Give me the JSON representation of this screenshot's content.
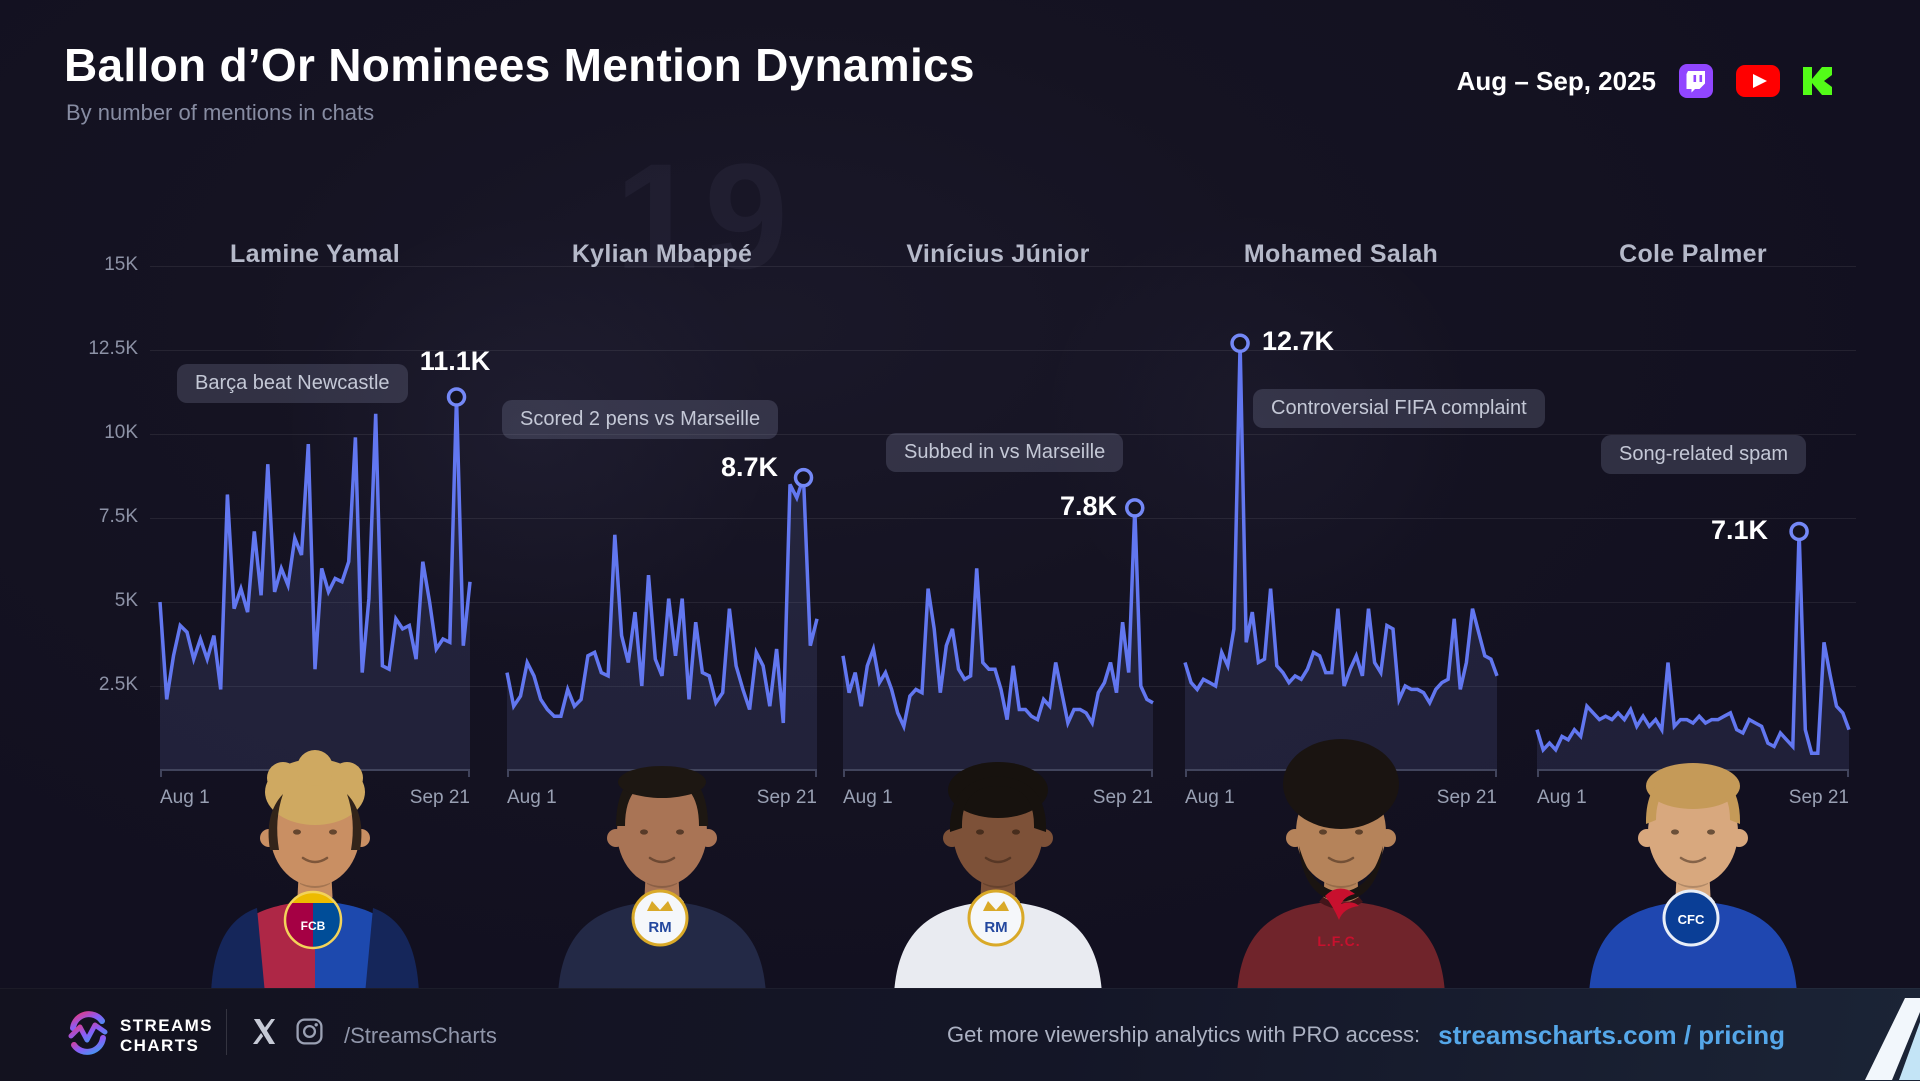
{
  "header": {
    "title": "Ballon d’Or Nominees Mention Dynamics",
    "subtitle": "By number of mentions in chats",
    "date_range": "Aug – Sep, 2025",
    "platform_icons": [
      "twitch",
      "youtube",
      "kick"
    ]
  },
  "chart_data": {
    "type": "line",
    "title": "Ballon d’Or Nominees Mention Dynamics",
    "metric": "Number of mentions in chats (thousands)",
    "x_start_label": "Aug 1",
    "x_end_label": "Sep 21",
    "ylim_k": [
      0,
      15
    ],
    "yticks": [
      "15K",
      "12.5K",
      "10K",
      "7.5K",
      "5K",
      "2.5K"
    ],
    "grid": true,
    "legend_position": "none",
    "series": [
      {
        "name": "Lamine Yamal",
        "annotation": "Barça beat Newcastle",
        "peak_label": "11.1K",
        "peak_value_k": 11.1,
        "values_k": [
          5.0,
          2.1,
          3.4,
          4.3,
          4.1,
          3.3,
          3.9,
          3.3,
          4.0,
          2.4,
          8.2,
          4.8,
          5.4,
          4.7,
          7.1,
          5.2,
          9.1,
          5.3,
          6.0,
          5.5,
          6.9,
          6.4,
          9.7,
          3.0,
          6.0,
          5.3,
          5.7,
          5.6,
          6.2,
          9.9,
          2.9,
          5.1,
          10.6,
          3.1,
          3.0,
          4.5,
          4.2,
          4.3,
          3.3,
          6.2,
          5.0,
          3.6,
          3.9,
          3.8,
          11.1,
          3.7,
          5.6
        ]
      },
      {
        "name": "Kylian Mbappé",
        "annotation": "Scored 2 pens vs Marseille",
        "peak_label": "8.7K",
        "peak_value_k": 8.7,
        "values_k": [
          2.9,
          1.9,
          2.2,
          3.2,
          2.8,
          2.1,
          1.8,
          1.6,
          1.6,
          2.4,
          1.9,
          2.1,
          3.4,
          3.5,
          2.9,
          2.8,
          7.0,
          4.0,
          3.2,
          4.7,
          2.5,
          5.8,
          3.3,
          2.8,
          5.1,
          3.4,
          5.1,
          2.1,
          4.4,
          2.9,
          2.8,
          2.0,
          2.3,
          4.8,
          3.1,
          2.4,
          1.8,
          3.5,
          3.1,
          1.9,
          3.6,
          1.4,
          8.5,
          8.1,
          8.7,
          3.7,
          4.5
        ]
      },
      {
        "name": "Vinícius Júnior",
        "annotation": "Subbed in vs Marseille",
        "peak_label": "7.8K",
        "peak_value_k": 7.8,
        "values_k": [
          3.4,
          2.3,
          2.9,
          1.9,
          3.1,
          3.6,
          2.6,
          2.9,
          2.4,
          1.7,
          1.3,
          2.2,
          2.4,
          2.3,
          5.4,
          4.2,
          2.3,
          3.7,
          4.2,
          3.0,
          2.7,
          2.8,
          6.0,
          3.2,
          3.0,
          3.0,
          2.4,
          1.5,
          3.1,
          1.8,
          1.8,
          1.6,
          1.5,
          2.1,
          1.9,
          3.2,
          2.3,
          1.4,
          1.8,
          1.8,
          1.7,
          1.4,
          2.3,
          2.6,
          3.2,
          2.3,
          4.4,
          2.9,
          7.8,
          2.5,
          2.1,
          2.0
        ]
      },
      {
        "name": "Mohamed Salah",
        "annotation": "Controversial FIFA complaint",
        "peak_label": "12.7K",
        "peak_value_k": 12.7,
        "values_k": [
          3.2,
          2.6,
          2.4,
          2.7,
          2.6,
          2.5,
          3.5,
          3.1,
          4.2,
          12.7,
          3.8,
          4.7,
          3.2,
          3.3,
          5.4,
          3.1,
          2.9,
          2.6,
          2.8,
          2.7,
          3.0,
          3.5,
          3.4,
          2.9,
          2.9,
          4.8,
          2.5,
          3.0,
          3.4,
          2.8,
          4.8,
          3.2,
          2.9,
          4.3,
          4.2,
          2.1,
          2.5,
          2.4,
          2.4,
          2.3,
          2.0,
          2.4,
          2.6,
          2.7,
          4.5,
          2.4,
          3.2,
          4.8,
          4.1,
          3.4,
          3.3,
          2.8
        ]
      },
      {
        "name": "Cole Palmer",
        "annotation": "Song-related spam",
        "peak_label": "7.1K",
        "peak_value_k": 7.1,
        "values_k": [
          1.2,
          0.6,
          0.8,
          0.6,
          1.0,
          0.9,
          1.2,
          1.0,
          1.9,
          1.7,
          1.5,
          1.6,
          1.5,
          1.7,
          1.5,
          1.8,
          1.3,
          1.6,
          1.3,
          1.5,
          1.2,
          3.2,
          1.3,
          1.5,
          1.5,
          1.4,
          1.6,
          1.4,
          1.5,
          1.5,
          1.6,
          1.7,
          1.2,
          1.1,
          1.5,
          1.4,
          1.3,
          0.8,
          0.7,
          1.1,
          0.9,
          0.7,
          7.1,
          1.2,
          0.5,
          0.5,
          3.8,
          2.8,
          1.9,
          1.7,
          1.2
        ]
      }
    ]
  },
  "players": [
    {
      "club": "FC Barcelona",
      "crest_label": "FCB",
      "avatar": {
        "skin": "#c98f63",
        "hair": "#cfa961",
        "hair2": "#32241a",
        "jersey": "#ae2746",
        "jersey2": "#1d49ae",
        "sleeve": "#15265a",
        "collar": "#13234f",
        "crest": "barca",
        "hair_style": "curly-blond"
      }
    },
    {
      "club": "Real Madrid",
      "crest_label": "RM",
      "avatar": {
        "skin": "#a97455",
        "hair": "#1d1712",
        "jersey": "#232946",
        "collar": "#e9ecf2",
        "crest": "real",
        "hair_style": "buzz"
      }
    },
    {
      "club": "Real Madrid",
      "crest_label": "RM",
      "avatar": {
        "skin": "#7d5138",
        "hair": "#17120e",
        "jersey": "#e9ebf1",
        "collar": "#cfd3dd",
        "crest": "real",
        "hair_style": "curly"
      }
    },
    {
      "club": "Liverpool FC",
      "crest_label": "L.F.C.",
      "avatar": {
        "skin": "#b5835a",
        "hair": "#1a1411",
        "jersey": "#70242b",
        "collar": "#43151a",
        "crest": "lfc",
        "hair_style": "afro"
      }
    },
    {
      "club": "Chelsea FC",
      "crest_label": "CFC",
      "avatar": {
        "skin": "#d8a87e",
        "hair": "#c59a58",
        "jersey": "#1f47b0",
        "collar": "#ffffff",
        "crest": "chelsea",
        "hair_style": "fringe"
      }
    }
  ],
  "footer": {
    "brand_line1": "STREAMS",
    "brand_line2": "CHARTS",
    "social_handle": "/StreamsCharts",
    "promo_text": "Get more viewership analytics with PRO access:",
    "promo_link": "streamscharts.com / pricing"
  },
  "background": {
    "jersey_number": "19"
  },
  "colors": {
    "line": "#6277f0",
    "marker_stroke": "#7488f6",
    "area_fill": "rgba(122,137,214,0.14)",
    "link_blue": "#55a7e9",
    "twitch": "#9146ff",
    "youtube": "#ff0000",
    "kick": "#53fc18",
    "background": "#141220"
  }
}
